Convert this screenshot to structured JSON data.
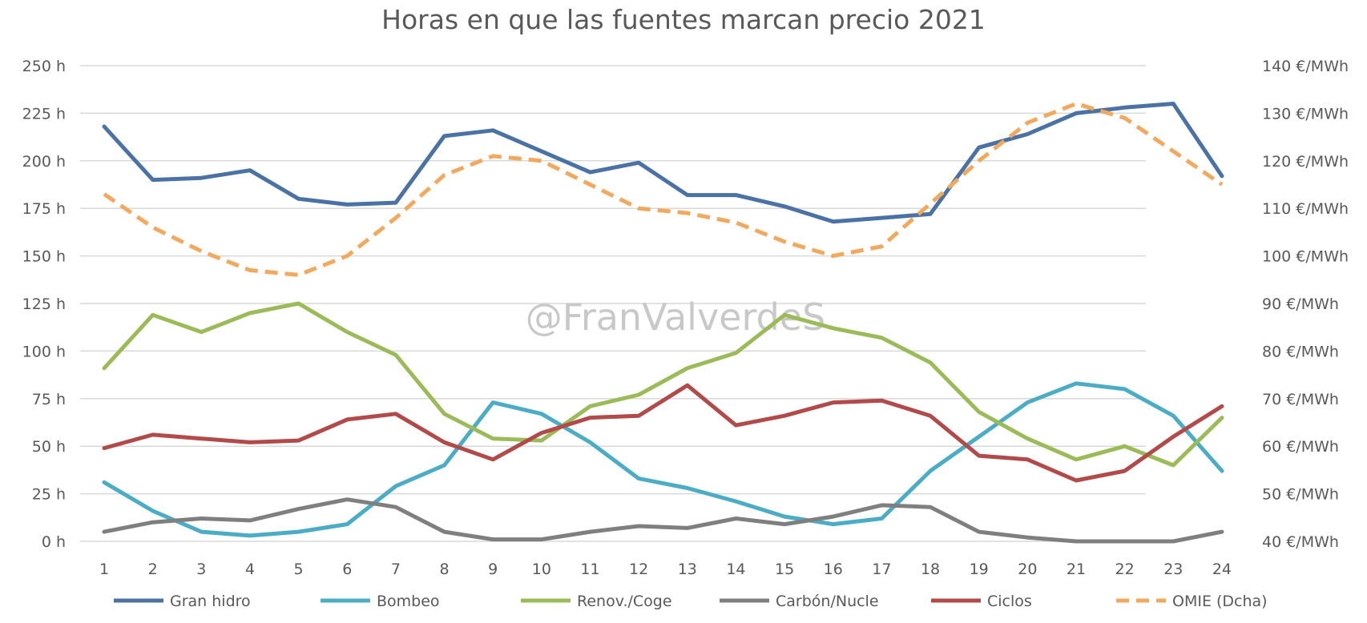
{
  "chart_data": {
    "type": "line",
    "title": "Horas en que las fuentes marcan precio 2021",
    "watermark": "@FranValverdeS",
    "categories": [
      "1",
      "2",
      "3",
      "4",
      "5",
      "6",
      "7",
      "8",
      "9",
      "10",
      "11",
      "12",
      "13",
      "14",
      "15",
      "16",
      "17",
      "18",
      "19",
      "20",
      "21",
      "22",
      "23",
      "24"
    ],
    "y_left": {
      "range": [
        0,
        250
      ],
      "ticks": [
        0,
        25,
        50,
        75,
        100,
        125,
        150,
        175,
        200,
        225,
        250
      ],
      "tick_labels": [
        "0 h",
        "25 h",
        "50 h",
        "75 h",
        "100 h",
        "125 h",
        "150 h",
        "175 h",
        "200 h",
        "225 h",
        "250 h"
      ]
    },
    "y_right": {
      "range": [
        40,
        140
      ],
      "ticks": [
        40,
        50,
        60,
        70,
        80,
        90,
        100,
        110,
        120,
        130,
        140
      ],
      "tick_labels": [
        "40 €/MWh",
        "50 €/MWh",
        "60 €/MWh",
        "70 €/MWh",
        "80 €/MWh",
        "90 €/MWh",
        "100 €/MWh",
        "110 €/MWh",
        "120 €/MWh",
        "130 €/MWh",
        "140 €/MWh"
      ]
    },
    "grid": true,
    "legend_position": "bottom",
    "series": [
      {
        "name": "Gran hidro",
        "axis": "left",
        "color": "#4a72a4",
        "dashed": false,
        "values": [
          218,
          190,
          191,
          195,
          180,
          177,
          178,
          213,
          216,
          205,
          194,
          199,
          182,
          182,
          176,
          168,
          170,
          172,
          207,
          214,
          225,
          228,
          230,
          192
        ]
      },
      {
        "name": "Bombeo",
        "axis": "left",
        "color": "#4bacc6",
        "dashed": false,
        "values": [
          31,
          16,
          5,
          3,
          5,
          9,
          29,
          40,
          73,
          67,
          52,
          33,
          28,
          21,
          13,
          9,
          12,
          37,
          55,
          73,
          83,
          80,
          66,
          37
        ]
      },
      {
        "name": "Renov./Coge",
        "axis": "left",
        "color": "#9bbb59",
        "dashed": false,
        "values": [
          91,
          119,
          110,
          120,
          125,
          110,
          98,
          67,
          54,
          53,
          71,
          77,
          91,
          99,
          119,
          112,
          107,
          94,
          68,
          54,
          43,
          50,
          40,
          65
        ]
      },
      {
        "name": "Carbón/Nucle",
        "axis": "left",
        "color": "#7f7f7f",
        "dashed": false,
        "values": [
          5,
          10,
          12,
          11,
          17,
          22,
          18,
          5,
          1,
          1,
          5,
          8,
          7,
          12,
          9,
          13,
          19,
          18,
          5,
          2,
          0,
          0,
          0,
          5
        ]
      },
      {
        "name": "Ciclos",
        "axis": "left",
        "color": "#b24a4a",
        "dashed": false,
        "values": [
          49,
          56,
          54,
          52,
          53,
          64,
          67,
          52,
          43,
          57,
          65,
          66,
          82,
          61,
          66,
          73,
          74,
          66,
          45,
          43,
          32,
          37,
          55,
          71
        ]
      },
      {
        "name": "OMIE (Dcha)",
        "axis": "right",
        "color": "#f2a95e",
        "dashed": true,
        "values": [
          113,
          106,
          101,
          97,
          96,
          100,
          108,
          117,
          121,
          120,
          115,
          110,
          109,
          107,
          103,
          100,
          102,
          111,
          120,
          128,
          132,
          129,
          122,
          115
        ]
      }
    ]
  }
}
